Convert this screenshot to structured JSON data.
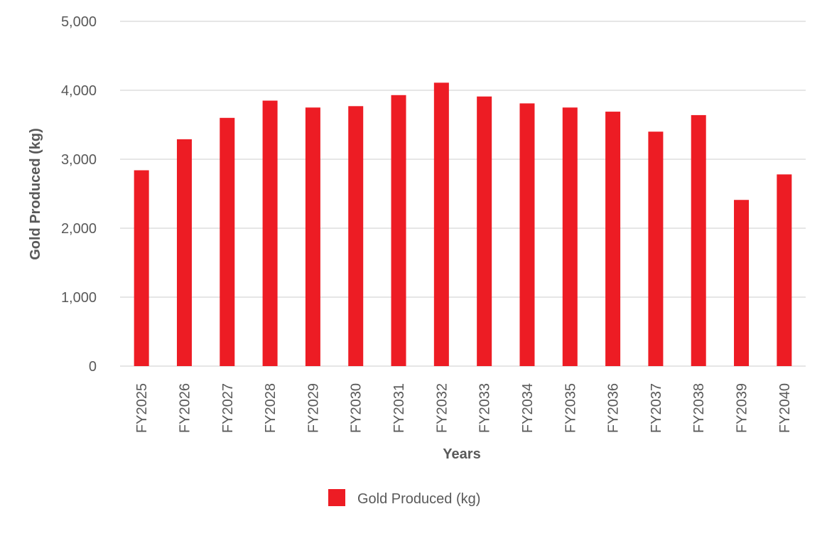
{
  "chart_data": {
    "type": "bar",
    "categories": [
      "FY2025",
      "FY2026",
      "FY2027",
      "FY2028",
      "FY2029",
      "FY2030",
      "FY2031",
      "FY2032",
      "FY2033",
      "FY2034",
      "FY2035",
      "FY2036",
      "FY2037",
      "FY2038",
      "FY2039",
      "FY2040"
    ],
    "series": [
      {
        "name": "Gold Produced (kg)",
        "color": "#ed1c24",
        "values": [
          2840,
          3290,
          3600,
          3850,
          3750,
          3770,
          3930,
          4110,
          3910,
          3810,
          3750,
          3690,
          3400,
          3640,
          2410,
          2780
        ]
      }
    ],
    "title": "",
    "xlabel": "Years",
    "ylabel": "Gold Produced (kg)",
    "ylim": [
      0,
      5000
    ],
    "yticks": [
      0,
      1000,
      2000,
      3000,
      4000,
      5000
    ],
    "ytick_labels": [
      "0",
      "1,000",
      "2,000",
      "3,000",
      "4,000",
      "5,000"
    ],
    "grid": true,
    "legend_position": "bottom"
  }
}
